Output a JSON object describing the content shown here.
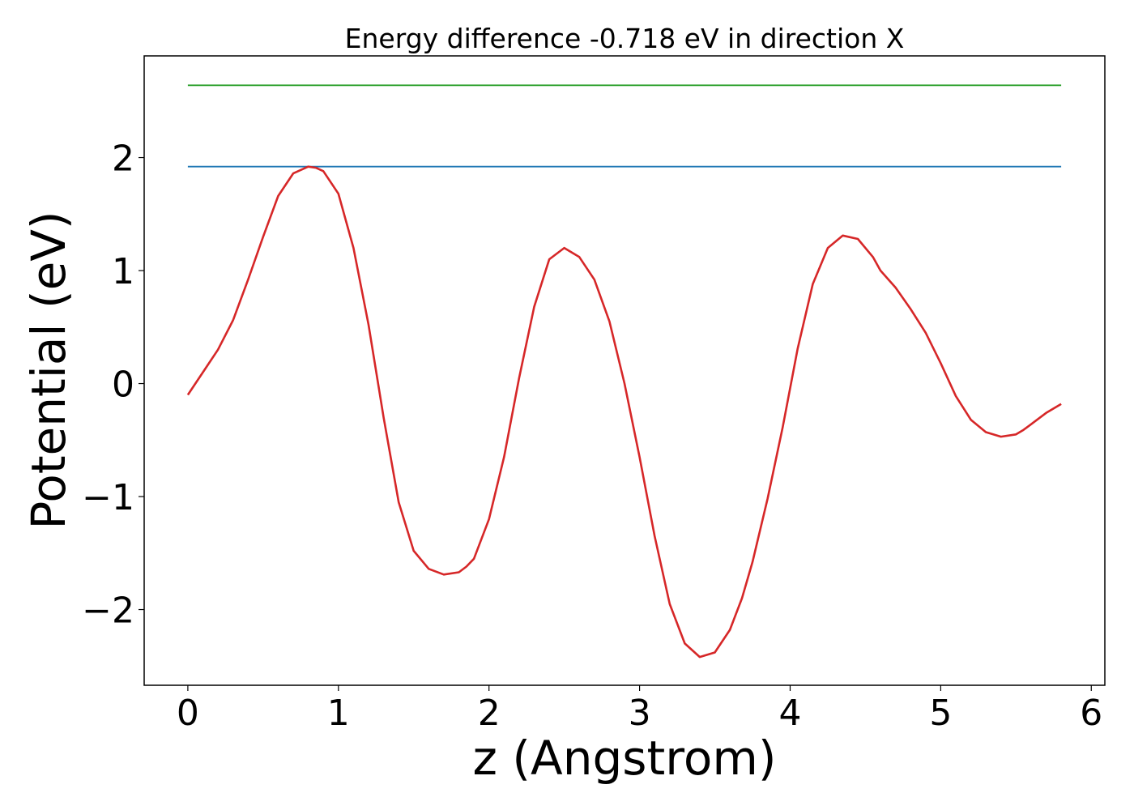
{
  "chart_data": {
    "type": "line",
    "title": "Energy difference -0.718 eV in direction X",
    "xlabel": "z (Angstrom)",
    "ylabel": "Potential (eV)",
    "xlim": [
      -0.29,
      6.09
    ],
    "ylim": [
      -2.67,
      2.9
    ],
    "xticks": [
      0,
      1,
      2,
      3,
      4,
      5,
      6
    ],
    "yticks": [
      -2,
      -1,
      0,
      1,
      2
    ],
    "grid": false,
    "series": [
      {
        "color": "#d62728",
        "x": [
          0.0,
          0.1,
          0.2,
          0.3,
          0.4,
          0.5,
          0.6,
          0.7,
          0.8,
          0.85,
          0.9,
          1.0,
          1.1,
          1.2,
          1.3,
          1.4,
          1.5,
          1.6,
          1.7,
          1.8,
          1.85,
          1.9,
          2.0,
          2.1,
          2.2,
          2.3,
          2.4,
          2.5,
          2.6,
          2.7,
          2.8,
          2.9,
          3.0,
          3.1,
          3.2,
          3.3,
          3.4,
          3.5,
          3.6,
          3.68,
          3.75,
          3.85,
          3.95,
          4.05,
          4.15,
          4.25,
          4.35,
          4.45,
          4.55,
          4.6,
          4.7,
          4.8,
          4.9,
          5.0,
          5.1,
          5.2,
          5.3,
          5.4,
          5.5,
          5.55,
          5.6,
          5.7,
          5.8
        ],
        "y": [
          -0.1,
          0.1,
          0.3,
          0.56,
          0.92,
          1.3,
          1.66,
          1.86,
          1.92,
          1.91,
          1.88,
          1.68,
          1.2,
          0.52,
          -0.3,
          -1.05,
          -1.48,
          -1.64,
          -1.69,
          -1.67,
          -1.62,
          -1.55,
          -1.2,
          -0.65,
          0.05,
          0.68,
          1.1,
          1.2,
          1.12,
          0.92,
          0.55,
          0.0,
          -0.65,
          -1.35,
          -1.95,
          -2.3,
          -2.42,
          -2.38,
          -2.18,
          -1.9,
          -1.58,
          -1.02,
          -0.39,
          0.31,
          0.88,
          1.2,
          1.31,
          1.28,
          1.12,
          1.0,
          0.85,
          0.66,
          0.45,
          0.18,
          -0.11,
          -0.32,
          -0.43,
          -0.47,
          -0.45,
          -0.41,
          -0.36,
          -0.26,
          -0.18
        ]
      },
      {
        "color": "#1f77b4",
        "x": [
          0.0,
          5.8
        ],
        "y": [
          1.92,
          1.92
        ]
      },
      {
        "color": "#2ca02c",
        "x": [
          0.0,
          5.8
        ],
        "y": [
          2.64,
          2.64
        ]
      }
    ]
  }
}
